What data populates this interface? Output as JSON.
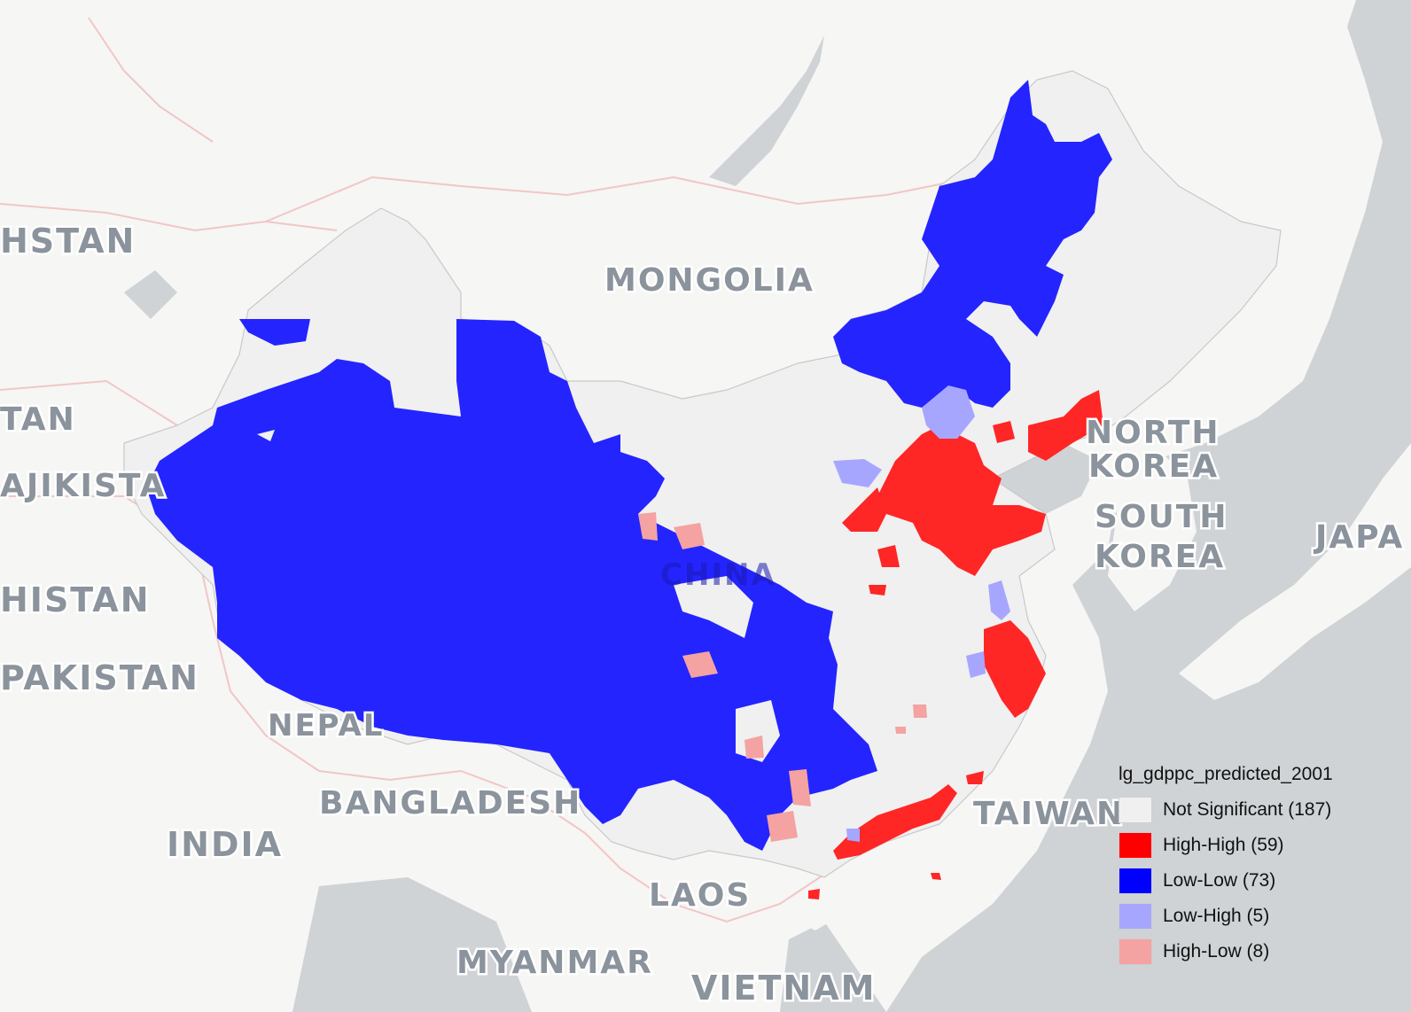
{
  "map": {
    "base_colors": {
      "land": "#f6f6f4",
      "water": "#cfd3d6",
      "border": "#f1c6c6",
      "grid": "#b9b9b9"
    },
    "country_labels": [
      {
        "id": "kazakhstan",
        "text": "HSTAN"
      },
      {
        "id": "kyrgyzstan",
        "text": "TAN"
      },
      {
        "id": "tajikistan",
        "text": "AJIKISTA"
      },
      {
        "id": "afghanistan",
        "text": "HISTAN"
      },
      {
        "id": "pakistan",
        "text": "PAKISTAN"
      },
      {
        "id": "mongolia",
        "text": "MONGOLIA"
      },
      {
        "id": "china",
        "text": "CHINA"
      },
      {
        "id": "nepal",
        "text": "NEPAL"
      },
      {
        "id": "bangladesh",
        "text": "BANGLADESH"
      },
      {
        "id": "india",
        "text": "INDIA"
      },
      {
        "id": "laos",
        "text": "LAOS"
      },
      {
        "id": "myanmar",
        "text": "MYANMAR"
      },
      {
        "id": "vietnam",
        "text": "VIETNAM"
      },
      {
        "id": "taiwan",
        "text": "TAIWAN"
      },
      {
        "id": "north-korea-1",
        "text": "NORTH"
      },
      {
        "id": "north-korea-2",
        "text": "KOREA"
      },
      {
        "id": "south-korea-1",
        "text": "SOUTH"
      },
      {
        "id": "south-korea-2",
        "text": "KOREA"
      },
      {
        "id": "japan",
        "text": "JAPA"
      }
    ]
  },
  "legend": {
    "title": "lg_gdppc_predicted_2001",
    "items": [
      {
        "key": "not_significant",
        "label": "Not Significant (187)",
        "color": "#f0f0f0"
      },
      {
        "key": "high_high",
        "label": "High-High (59)",
        "color": "#ff0000"
      },
      {
        "key": "low_low",
        "label": "Low-Low (73)",
        "color": "#0000ff"
      },
      {
        "key": "low_high",
        "label": "Low-High (5)",
        "color": "#a7a6ff"
      },
      {
        "key": "high_low",
        "label": "High-Low (8)",
        "color": "#f4a2a2"
      }
    ]
  }
}
